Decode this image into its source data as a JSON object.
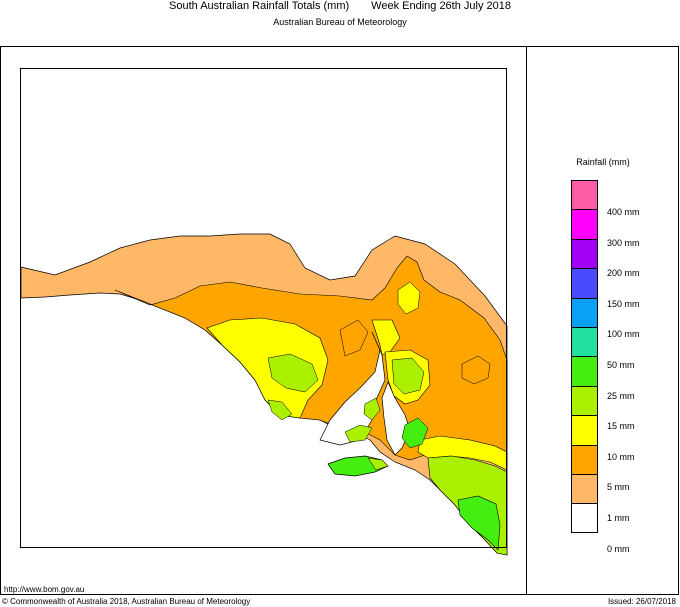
{
  "header": {
    "title": "South Australian Rainfall Totals (mm)",
    "period": "Week Ending 26th July 2018",
    "subtitle": "Australian Bureau of Meteorology"
  },
  "legend": {
    "title": "Rainfall (mm)",
    "bands": [
      {
        "color": "#ff5ca8"
      },
      {
        "color": "#ff00ff"
      },
      {
        "color": "#a100f2"
      },
      {
        "color": "#4a4aff"
      },
      {
        "color": "#0aa0f5"
      },
      {
        "color": "#22e0a0"
      },
      {
        "color": "#44ee11"
      },
      {
        "color": "#aaf000"
      },
      {
        "color": "#ffff00"
      },
      {
        "color": "#ffa500"
      },
      {
        "color": "#ffb868"
      },
      {
        "color": "#ffffff"
      }
    ],
    "labels": [
      "400 mm",
      "300 mm",
      "200 mm",
      "150 mm",
      "100 mm",
      "50 mm",
      "25 mm",
      "15 mm",
      "10 mm",
      "5 mm",
      "1 mm",
      "0 mm"
    ]
  },
  "footer": {
    "url": "http://www.bom.gov.au",
    "copyright": "© Commonwealth of Australia 2018, Australian Bureau of Meteorology",
    "issued": "Issued: 26/07/2018"
  }
}
